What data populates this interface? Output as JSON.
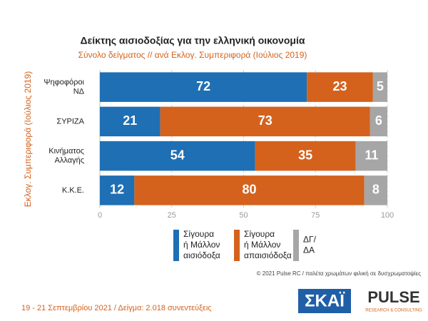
{
  "chart_data": {
    "type": "stacked_barh",
    "title": "Δείκτης αισιοδοξίας για την ελληνική οικονομία",
    "subtitle": "Σύνολο δείγματος // ανά Εκλογ. Συμπεριφορά (Ιούλιος 2019)",
    "y_label": "Εκλογ. Συμπεριφορά (Ιούλιος 2019)",
    "categories": [
      "Ψηφοφόροι\nΝΔ",
      "ΣΥΡΙΖΑ",
      "Κινήματος\nΑλλαγής",
      "Κ.Κ.Ε."
    ],
    "series": [
      {
        "name": "Σίγουρα\nή Μάλλον\nαισιόδοξα",
        "color": "#1f6fb4",
        "values": [
          72,
          21,
          54,
          12
        ]
      },
      {
        "name": "Σίγουρα\nή Μάλλον\nαπαισιόδοξα",
        "color": "#d4621c",
        "values": [
          23,
          73,
          35,
          80
        ]
      },
      {
        "name": "ΔΓ/\nΔΑ",
        "color": "#a6a6a6",
        "values": [
          5,
          6,
          11,
          8
        ]
      }
    ],
    "xlim": [
      0,
      100
    ],
    "xticks": [
      0,
      25,
      50,
      75,
      100
    ],
    "grid": true,
    "source": "© 2021 Pulse RC  /  παλέτα χρωμάτων φιλική σε δυσχρωματοψίες",
    "footer": "19 - 21 Σεπτεμβρίου 2021  /  Δείγμα:  2.018 συνεντεύξεις",
    "logos": {
      "broadcaster": "ΣΚΑΪ",
      "pollster": "PULSE",
      "pollster_tagline": "RESEARCH & CONSULTING"
    }
  }
}
